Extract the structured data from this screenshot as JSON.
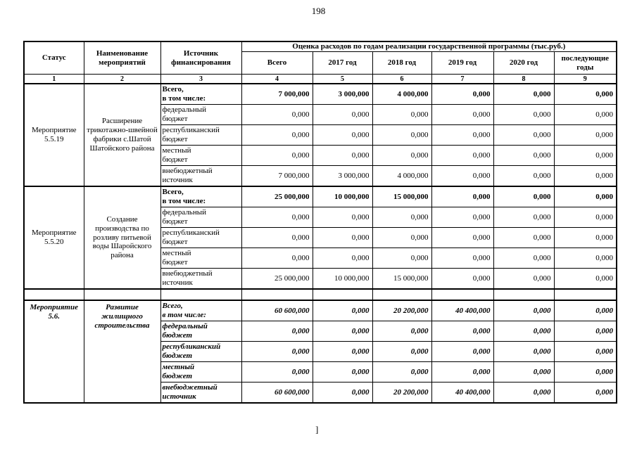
{
  "page": {
    "number": "198",
    "footer_mark": "]"
  },
  "table": {
    "header": {
      "status": "Статус",
      "name": "Наименование\nмероприятий",
      "source": "Источник\nфинансирования",
      "group": "Оценка расходов по годам реализации государственной программы (тыс.руб.)",
      "years": [
        "Всего",
        "2017 год",
        "2018 год",
        "2019 год",
        "2020 год",
        "последующие\nгоды"
      ],
      "numbers": [
        "1",
        "2",
        "3",
        "4",
        "5",
        "6",
        "7",
        "8",
        "9"
      ]
    },
    "blocks": [
      {
        "status": "Мероприятие\n5.5.19",
        "name": "Расширение\nтрикотажно-швейной\nфабрики с.Шатой\nШатойского района",
        "emphasis": false,
        "valign": "middle",
        "spacer_before": false,
        "rows": [
          {
            "source": "Всего,\nв том числе:",
            "bold": true,
            "values": [
              "7 000,000",
              "3 000,000",
              "4 000,000",
              "0,000",
              "0,000",
              "0,000"
            ]
          },
          {
            "source": "федеральный\nбюджет",
            "bold": false,
            "values": [
              "0,000",
              "0,000",
              "0,000",
              "0,000",
              "0,000",
              "0,000"
            ]
          },
          {
            "source": "республиканский\nбюджет",
            "bold": false,
            "values": [
              "0,000",
              "0,000",
              "0,000",
              "0,000",
              "0,000",
              "0,000"
            ]
          },
          {
            "source": "местный\nбюджет",
            "bold": false,
            "values": [
              "0,000",
              "0,000",
              "0,000",
              "0,000",
              "0,000",
              "0,000"
            ]
          },
          {
            "source": "внебюджетный\nисточник",
            "bold": false,
            "values": [
              "7 000,000",
              "3 000,000",
              "4 000,000",
              "0,000",
              "0,000",
              "0,000"
            ]
          }
        ]
      },
      {
        "status": "Мероприятие\n5.5.20",
        "name": "Создание\nпроизводства по\nрозливу питьевой\nводы Шаройского\nрайона",
        "emphasis": false,
        "valign": "middle",
        "spacer_before": false,
        "rows": [
          {
            "source": "Всего,\nв том числе:",
            "bold": true,
            "values": [
              "25 000,000",
              "10 000,000",
              "15 000,000",
              "0,000",
              "0,000",
              "0,000"
            ]
          },
          {
            "source": "федеральный\nбюджет",
            "bold": false,
            "values": [
              "0,000",
              "0,000",
              "0,000",
              "0,000",
              "0,000",
              "0,000"
            ]
          },
          {
            "source": "республиканский\nбюджет",
            "bold": false,
            "values": [
              "0,000",
              "0,000",
              "0,000",
              "0,000",
              "0,000",
              "0,000"
            ]
          },
          {
            "source": "местный\nбюджет",
            "bold": false,
            "values": [
              "0,000",
              "0,000",
              "0,000",
              "0,000",
              "0,000",
              "0,000"
            ]
          },
          {
            "source": "внебюджетный\nисточник",
            "bold": false,
            "values": [
              "25 000,000",
              "10 000,000",
              "15 000,000",
              "0,000",
              "0,000",
              "0,000"
            ]
          }
        ]
      },
      {
        "status": "Мероприятие\n5.6.",
        "name": "Развитие\nжилищного\nстроительства",
        "emphasis": true,
        "valign": "top",
        "spacer_before": true,
        "rows": [
          {
            "source": "Всего,\nв том числе:",
            "bold": true,
            "values": [
              "60 600,000",
              "0,000",
              "20 200,000",
              "40 400,000",
              "0,000",
              "0,000"
            ]
          },
          {
            "source": "федеральный\nбюджет",
            "bold": false,
            "values": [
              "0,000",
              "0,000",
              "0,000",
              "0,000",
              "0,000",
              "0,000"
            ]
          },
          {
            "source": "республиканский\nбюджет",
            "bold": false,
            "values": [
              "0,000",
              "0,000",
              "0,000",
              "0,000",
              "0,000",
              "0,000"
            ]
          },
          {
            "source": "местный\nбюджет",
            "bold": false,
            "values": [
              "0,000",
              "0,000",
              "0,000",
              "0,000",
              "0,000",
              "0,000"
            ]
          },
          {
            "source": "внебюджетный\nисточник",
            "bold": false,
            "values": [
              "60 600,000",
              "0,000",
              "20 200,000",
              "40 400,000",
              "0,000",
              "0,000"
            ]
          }
        ]
      }
    ]
  }
}
